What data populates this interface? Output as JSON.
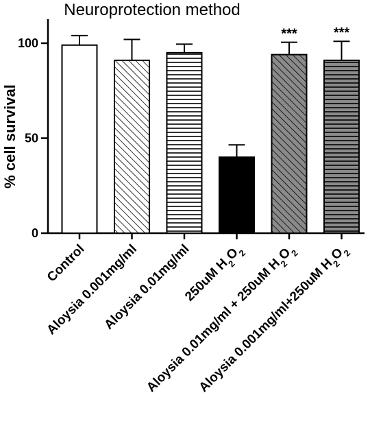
{
  "chart_data": {
    "type": "bar",
    "title": "Neuroprotection method",
    "xlabel": "",
    "ylabel": "% cell survival",
    "ylim": [
      0,
      110
    ],
    "yticks": [
      0,
      50,
      100
    ],
    "grid": false,
    "categories": [
      "Control",
      "Aloysia 0.001mg/ml",
      "Aloysia 0.01mg/ml",
      "250uM H2O2",
      "Aloysia 0.01mg/ml + 250uM H2O2",
      "Aloysia 0.001mg/ml+250uM H2O2"
    ],
    "values": [
      99,
      91,
      95,
      40,
      94,
      91
    ],
    "errors": [
      5,
      11,
      4.5,
      6.5,
      6.5,
      10
    ],
    "annotations": [
      "",
      "",
      "",
      "",
      "***",
      "***"
    ],
    "fills": [
      "white",
      "diagonal-hatch",
      "horizontal-hatch",
      "solid-black",
      "diagonal-hatch-gray",
      "horizontal-hatch-gray"
    ]
  }
}
